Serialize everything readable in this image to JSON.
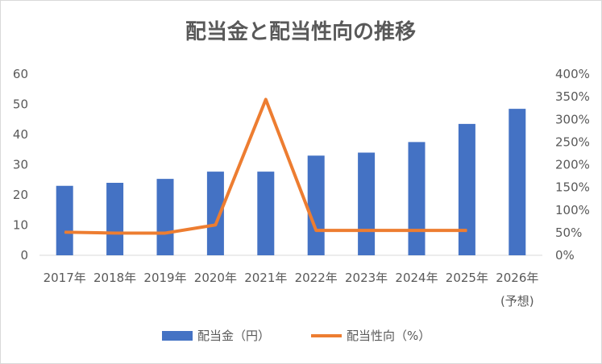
{
  "chart_data": {
    "type": "bar",
    "title": "配当金と配当性向の推移",
    "categories": [
      "2017年",
      "2018年",
      "2019年",
      "2020年",
      "2021年",
      "2022年",
      "2023年",
      "2024年",
      "2025年",
      "2026年"
    ],
    "category_notes": [
      "",
      "",
      "",
      "",
      "",
      "",
      "",
      "",
      "",
      "(予想)"
    ],
    "series": [
      {
        "name": "配当金（円）",
        "type": "bar",
        "axis": "left",
        "color": "#4472c4",
        "values": [
          23,
          24,
          25.3,
          27.7,
          27.7,
          33,
          34,
          37.5,
          43.5,
          48.5
        ]
      },
      {
        "name": "配当性向（%）",
        "type": "line",
        "axis": "right",
        "color": "#ed7d31",
        "values": [
          51,
          49,
          49,
          67,
          344,
          55,
          55,
          55,
          55,
          null
        ]
      }
    ],
    "y_left": {
      "min": 0,
      "max": 60,
      "ticks": [
        "0",
        "10",
        "20",
        "30",
        "40",
        "50",
        "60"
      ]
    },
    "y_right": {
      "min": 0,
      "max": 400,
      "ticks": [
        "0%",
        "50%",
        "100%",
        "150%",
        "200%",
        "250%",
        "300%",
        "350%",
        "400%"
      ]
    },
    "grid": false,
    "legend_position": "bottom"
  }
}
